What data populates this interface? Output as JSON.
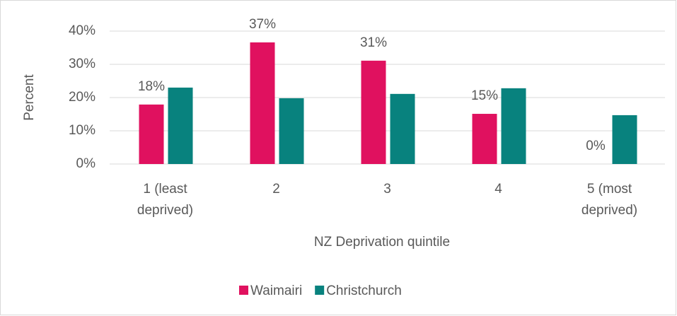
{
  "chart_data": {
    "type": "bar",
    "categories": [
      "1 (least deprived)",
      "2",
      "3",
      "4",
      "5 (most deprived)"
    ],
    "series": [
      {
        "name": "Waimairi",
        "color": "#e0115f",
        "values": [
          17.9,
          36.6,
          31.1,
          15.1,
          0
        ],
        "value_labels": [
          "18%",
          "37%",
          "31%",
          "15%",
          "0%"
        ]
      },
      {
        "name": "Christchurch",
        "color": "#08827e",
        "values": [
          23,
          19.8,
          21.1,
          22.8,
          14.7
        ]
      }
    ],
    "xlabel": "NZ Deprivation quintile",
    "ylabel": "Percent",
    "ylim": [
      0,
      40
    ],
    "yticks": [
      {
        "value": 0,
        "label": "0%"
      },
      {
        "value": 10,
        "label": "10%"
      },
      {
        "value": 20,
        "label": "20%"
      },
      {
        "value": 30,
        "label": "30%"
      },
      {
        "value": 40,
        "label": "40%"
      }
    ],
    "grid": true,
    "legend": "bottom"
  }
}
